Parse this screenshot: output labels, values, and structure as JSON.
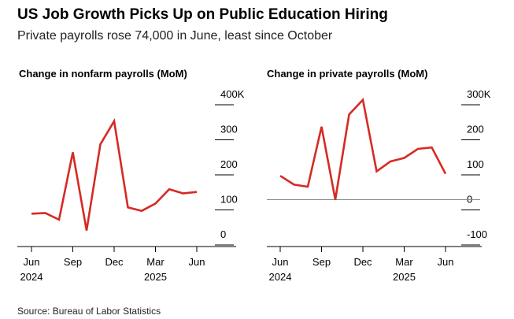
{
  "headline": "US Job Growth Picks Up on Public Education Hiring",
  "subheadline": "Private payrolls rose 74,000 in June, least since October",
  "source": "Source: Bureau of Labor Statistics",
  "colors": {
    "line": "#d62a24",
    "axis": "#000000",
    "zero_line": "#888888"
  },
  "chart_data": [
    {
      "type": "line",
      "title": "Change in nonfarm payrolls (MoM)",
      "x": [
        "2024-06",
        "2024-07",
        "2024-08",
        "2024-09",
        "2024-10",
        "2024-11",
        "2024-12",
        "2025-01",
        "2025-02",
        "2025-03",
        "2025-04",
        "2025-05",
        "2025-06"
      ],
      "x_tick_labels": [
        "Jun",
        "Sep",
        "Dec",
        "Mar",
        "Jun"
      ],
      "x_tick_positions": [
        "2024-06",
        "2024-09",
        "2024-12",
        "2025-03",
        "2025-06"
      ],
      "x_year_labels": [
        {
          "label": "2024",
          "at": "2024-06"
        },
        {
          "label": "2025",
          "at": "2025-03"
        }
      ],
      "series": [
        {
          "values": [
            60,
            62,
            43,
            235,
            12,
            258,
            324,
            78,
            68,
            89,
            130,
            118,
            122
          ]
        }
      ],
      "ylim": [
        0,
        400
      ],
      "y_ticks": [
        0,
        100,
        200,
        300,
        400
      ],
      "y_tick_labels": [
        "0",
        "100",
        "200",
        "300",
        "400K"
      ],
      "y_axis_side": "right",
      "grid": false
    },
    {
      "type": "line",
      "title": "Change in private payrolls (MoM)",
      "x": [
        "2024-06",
        "2024-07",
        "2024-08",
        "2024-09",
        "2024-10",
        "2024-11",
        "2024-12",
        "2025-01",
        "2025-02",
        "2025-03",
        "2025-04",
        "2025-05",
        "2025-06"
      ],
      "x_tick_labels": [
        "Jun",
        "Sep",
        "Dec",
        "Mar",
        "Jun"
      ],
      "x_tick_positions": [
        "2024-06",
        "2024-09",
        "2024-12",
        "2025-03",
        "2025-06"
      ],
      "x_year_labels": [
        {
          "label": "2024",
          "at": "2024-06"
        },
        {
          "label": "2025",
          "at": "2025-03"
        }
      ],
      "series": [
        {
          "values": [
            68,
            43,
            37,
            208,
            0,
            243,
            285,
            81,
            109,
            119,
            145,
            149,
            74
          ]
        }
      ],
      "ylim": [
        -100,
        300
      ],
      "y_ticks": [
        -100,
        0,
        100,
        200,
        300
      ],
      "y_tick_labels": [
        "-100",
        "0",
        "100",
        "200",
        "300K"
      ],
      "y_axis_side": "right",
      "zero_line": true,
      "grid": false
    }
  ]
}
